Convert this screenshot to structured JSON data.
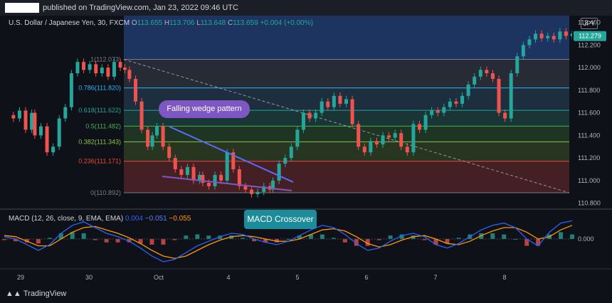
{
  "header": {
    "published": "published on TradingView.com, Jan 23, 2022 09:46 UTC"
  },
  "symbol": {
    "name": "U.S. Dollar / Japanese Yen, 30, FXCM",
    "o_label": "O",
    "o_val": "113.655",
    "h_label": "H",
    "h_val": "113.706",
    "l_label": "L",
    "l_val": "113.648",
    "c_label": "C",
    "c_val": "113.659",
    "change": "+0.004 (+0.00%)"
  },
  "currency_badge": "JPY",
  "macd_legend": {
    "name": "MACD (12, 26, close, 9, EMA, EMA)",
    "macd": "0.004",
    "signal": "−0.051",
    "hist": "−0.055"
  },
  "annotations": {
    "wedge": "Falling wedge pattern",
    "crossover": "MACD Crossover"
  },
  "footer": {
    "brand": "TradingView"
  },
  "colors": {
    "bull": "#26a69a",
    "bear": "#ef5350",
    "macd_line": "#2962ff",
    "signal_line": "#ff9800",
    "wedge_line": "#5b6cff",
    "annotation_purple": "#7e57c2",
    "annotation_teal": "#1c8b9a"
  },
  "chart_data": [
    {
      "type": "line",
      "title": "U.S. Dollar / Japanese Yen, 30, FXCM",
      "x_tick_labels": [
        "29",
        "30",
        "Oct",
        "4",
        "5",
        "6",
        "7",
        "8"
      ],
      "y_tick_labels": [
        "112.400",
        "112.200",
        "112.000",
        "111.800",
        "111.600",
        "111.400",
        "111.200",
        "111.000",
        "110.800"
      ],
      "ylim": [
        110.76,
        112.46
      ],
      "price_badge": "112.279",
      "price_series": {
        "x": [
          0,
          0.3,
          0.5,
          0.7,
          0.9,
          1.0,
          1.2,
          1.4,
          1.6,
          1.8,
          2.0,
          2.2,
          2.4,
          2.6,
          2.8,
          3.0,
          3.2,
          3.4,
          3.6,
          3.8,
          3.95,
          4.1,
          4.3,
          4.5,
          4.7,
          4.85,
          5.0,
          5.2,
          5.4,
          5.6,
          5.8,
          6.0,
          6.2,
          6.4,
          6.5,
          6.7,
          6.9,
          7.1,
          7.3,
          7.5,
          7.7,
          7.9,
          8.1,
          8.3,
          8.5,
          8.7,
          8.8,
          9.0,
          9.2,
          9.4,
          9.6,
          9.8,
          10.0,
          10.2,
          10.4,
          10.6,
          10.8,
          11.0,
          11.2,
          11.4,
          11.6,
          11.8,
          12.0,
          12.2,
          12.4,
          12.6,
          12.8,
          13.0,
          13.2,
          13.4,
          13.6,
          13.8,
          14.0,
          14.2,
          14.4,
          14.6,
          14.8,
          15.0,
          15.2,
          15.4,
          15.6,
          15.8,
          16.0,
          16.2,
          16.4,
          16.6,
          16.8,
          17.0,
          17.2,
          17.4,
          17.6,
          17.8,
          18.0,
          18.2,
          18.4,
          18.6
        ],
        "y": [
          111.58,
          111.55,
          111.62,
          111.45,
          111.6,
          111.4,
          111.48,
          111.25,
          111.3,
          111.55,
          111.65,
          111.95,
          112.05,
          111.98,
          112.03,
          111.95,
          112.0,
          111.92,
          112.05,
          112.0,
          111.98,
          111.9,
          111.7,
          111.45,
          111.3,
          111.4,
          111.48,
          111.3,
          111.2,
          111.1,
          111.05,
          111.12,
          111.0,
          111.05,
          110.98,
          110.95,
          111.05,
          111.0,
          111.25,
          111.1,
          110.95,
          110.92,
          110.88,
          110.9,
          110.95,
          110.92,
          111.0,
          111.15,
          111.2,
          111.3,
          111.45,
          111.6,
          111.55,
          111.6,
          111.7,
          111.65,
          111.75,
          111.68,
          111.72,
          111.5,
          111.3,
          111.25,
          111.35,
          111.32,
          111.4,
          111.38,
          111.42,
          111.3,
          111.25,
          111.5,
          111.45,
          111.58,
          111.62,
          111.6,
          111.65,
          111.7,
          111.68,
          111.75,
          111.85,
          111.92,
          111.98,
          111.95,
          111.9,
          111.6,
          111.55,
          111.95,
          112.1,
          112.2,
          112.25,
          112.3,
          112.26,
          112.28,
          112.25,
          112.32,
          112.28,
          112.3
        ]
      },
      "fibonacci": [
        {
          "label": "1(112.073)",
          "value": 112.073,
          "color": "#787b86"
        },
        {
          "label": "0.786(111.820)",
          "value": 111.82,
          "color": "#29b6f6"
        },
        {
          "label": "0.618(111.622)",
          "value": 111.622,
          "color": "#26a69a"
        },
        {
          "label": "0.5(111.482)",
          "value": 111.482,
          "color": "#4caf50"
        },
        {
          "label": "0.382(111.343)",
          "value": 111.343,
          "color": "#8bc34a"
        },
        {
          "label": "0.236(111.171)",
          "value": 111.171,
          "color": "#f44336"
        },
        {
          "label": "0(110.892)",
          "value": 110.892,
          "color": "#787b86"
        }
      ]
    },
    {
      "type": "line",
      "title": "MACD (12, 26, close, 9, EMA, EMA)",
      "y_tick_labels": [
        "0.000"
      ],
      "ylim": [
        -0.25,
        0.25
      ],
      "series": [
        {
          "name": "MACD",
          "values": [
            0.02,
            0.0,
            -0.05,
            -0.1,
            -0.05,
            0.05,
            0.12,
            0.15,
            0.1,
            0.05,
            0.02,
            -0.02,
            -0.08,
            -0.15,
            -0.2,
            -0.18,
            -0.12,
            -0.06,
            -0.02,
            0.02,
            0.05,
            0.04,
            0.0,
            -0.03,
            -0.05,
            -0.02,
            0.03,
            0.08,
            0.12,
            0.1,
            0.04,
            -0.04,
            -0.1,
            -0.08,
            -0.02,
            0.03,
            0.05,
            0.02,
            -0.05,
            -0.08,
            -0.04,
            0.02,
            0.08,
            0.12,
            0.14,
            0.1,
            0.0,
            -0.06,
            0.06,
            0.14,
            0.16
          ]
        },
        {
          "name": "Signal",
          "values": [
            0.03,
            0.02,
            -0.02,
            -0.06,
            -0.06,
            0.0,
            0.06,
            0.1,
            0.11,
            0.08,
            0.05,
            0.01,
            -0.04,
            -0.1,
            -0.15,
            -0.17,
            -0.15,
            -0.1,
            -0.05,
            -0.01,
            0.02,
            0.03,
            0.02,
            0.0,
            -0.02,
            -0.02,
            0.0,
            0.04,
            0.08,
            0.09,
            0.07,
            0.02,
            -0.04,
            -0.07,
            -0.05,
            -0.01,
            0.02,
            0.03,
            0.0,
            -0.04,
            -0.05,
            -0.02,
            0.03,
            0.07,
            0.1,
            0.1,
            0.06,
            0.0,
            0.02,
            0.08,
            0.12
          ]
        }
      ]
    }
  ]
}
